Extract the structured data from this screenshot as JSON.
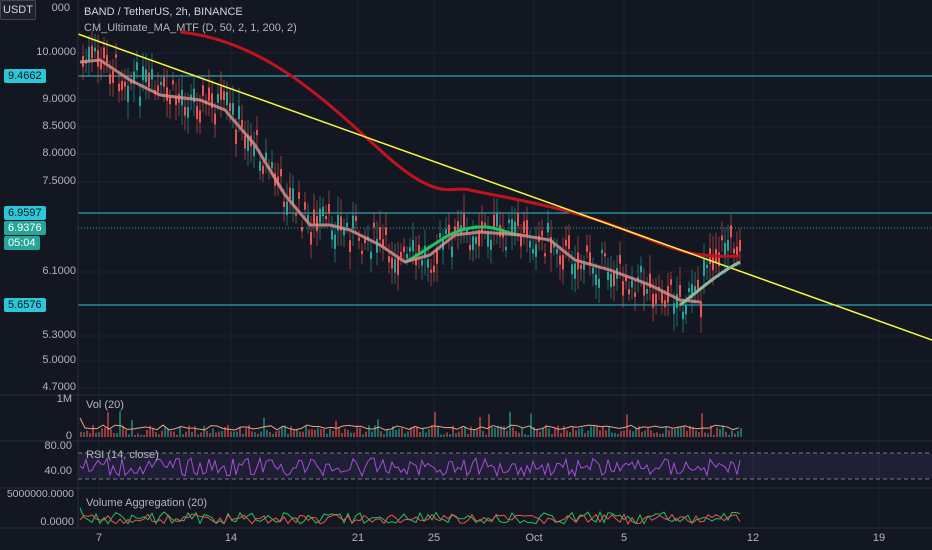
{
  "header": {
    "currency_button": "USDT",
    "symbol_line": "BAND / TetherUS, 2h, BINANCE",
    "indicator_line": "CM_Ultimate_MA_MTF (D, 50, 2, 1, 200, 2)"
  },
  "price_axis": {
    "labels": [
      "10.0000",
      "9.0000",
      "8.5000",
      "8.0000",
      "7.5000",
      "6.1000",
      "5.3000",
      "5.0000",
      "4.7000"
    ],
    "top_partial": "000"
  },
  "badges": {
    "level_high": "9.4662",
    "level_mid": "6.9597",
    "last_price": "6.9376",
    "countdown": "05:04",
    "level_low": "5.6576"
  },
  "volume_pane": {
    "label": "Vol (20)",
    "axis_top": "1M",
    "axis_bottom": "0"
  },
  "rsi_pane": {
    "label": "RSI (14, close)",
    "axis_top": "80.00",
    "axis_bottom": "40.00"
  },
  "agg_pane": {
    "label": "Volume Aggregation (20)",
    "axis_top": "5000000.0000",
    "axis_bottom": "0.0000"
  },
  "time_axis": {
    "labels": [
      "7",
      "14",
      "21",
      "25",
      "Oct",
      "5",
      "12",
      "19"
    ]
  },
  "colors": {
    "background": "#131722",
    "up_candle": "#26a69a",
    "down_candle": "#ef5350",
    "trendline": "#f5f542",
    "horizontal_level": "#2cc7d8",
    "ma_red": "#c1121f",
    "ma_green": "#22c55e",
    "ma_pink": "#d78c8c",
    "rsi_line": "#a64ed8"
  },
  "icons": {
    "currency": "currency-selector-icon"
  }
}
